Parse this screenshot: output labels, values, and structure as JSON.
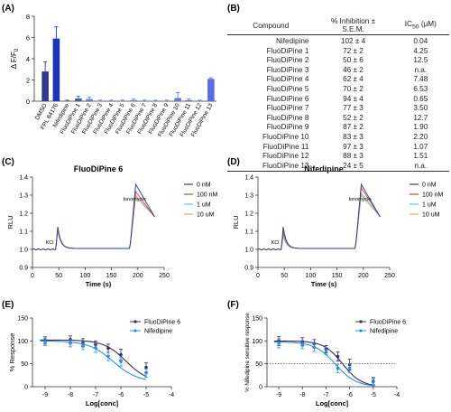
{
  "panel_labels": {
    "A": "(A)",
    "B": "(B)",
    "C": "(C)",
    "D": "(D)",
    "E": "(E)",
    "F": "(F)"
  },
  "table": {
    "headers": [
      "Compound",
      "% Inhibition ±",
      "S.E.M.",
      "IC",
      "50",
      " (μM)"
    ],
    "rows": [
      [
        "Nifedipine",
        "102 ± 4",
        "0.04"
      ],
      [
        "FluoDiPine 1",
        "72 ± 2",
        "4.25"
      ],
      [
        "FluoDiPine 2",
        "50 ± 6",
        "12.5"
      ],
      [
        "FluoDiPine 3",
        "46 ± 2",
        "n.a."
      ],
      [
        "FluoDiPine 4",
        "62 ± 4",
        "7.48"
      ],
      [
        "FluoDiPine 5",
        "70 ± 2",
        "6.53"
      ],
      [
        "FluoDiPine 6",
        "94 ± 4",
        "0.65"
      ],
      [
        "FluoDiPine 7",
        "77 ± 3",
        "3.50"
      ],
      [
        "FluoDiPine 8",
        "52 ± 2",
        "12.7"
      ],
      [
        "FluoDiPine 9",
        "87 ± 2",
        "1.90"
      ],
      [
        "FluoDiPine 10",
        "83 ± 3",
        "2.20"
      ],
      [
        "FluoDiPine 11",
        "97 ± 3",
        "1.07"
      ],
      [
        "FluoDiPine 12",
        "88 ± 3",
        "1.51"
      ],
      [
        "FluoDiPine 13",
        "24 ± 5",
        "n.a."
      ]
    ]
  },
  "chart_data": [
    {
      "id": "A",
      "type": "bar",
      "ylabel": "Δ F/F",
      "ylabel_sub": "0",
      "ylim": [
        0,
        8
      ],
      "yticks": [
        0,
        2,
        4,
        6,
        8
      ],
      "categories": [
        "DMSO",
        "FPL 64176",
        "Nifedipine",
        "FluoDiPine 1",
        "FluoDiPine 2",
        "FluoDiPine 3",
        "FluoDiPine 4",
        "FluoDiPine 5",
        "FluoDiPine 6",
        "FluoDiPine 7",
        "FluoDiPine 8",
        "FluoDiPine 9",
        "FluoDiPine 10",
        "FluoDiPine 11",
        "FluoDiPine 12",
        "FluoDiPine 13"
      ],
      "values": [
        2.8,
        5.9,
        0.05,
        0.25,
        0.2,
        0.05,
        0.05,
        0.05,
        0.1,
        0.05,
        0.05,
        0.05,
        0.3,
        0.1,
        0.05,
        2.1
      ],
      "errors": [
        0.9,
        1.1,
        0.05,
        0.2,
        0.2,
        0.05,
        0.05,
        0.05,
        0.1,
        0.05,
        0.05,
        0.05,
        0.5,
        0.1,
        0.05,
        0.1
      ],
      "colors": [
        "#2e3a87",
        "#1a35b8",
        "#4a5a9a",
        "#4a5a9a",
        "#6a7cc8",
        "#6a7cc8",
        "#6a7cc8",
        "#6a7cc8",
        "#6a7cc8",
        "#6a7cc8",
        "#6a7cc8",
        "#6a7cc8",
        "#6a7cc8",
        "#6a7cc8",
        "#6a7cc8",
        "#5b6ce0"
      ]
    },
    {
      "id": "C",
      "type": "line",
      "title": "FluoDiPine 6",
      "xlabel": "Time (s)",
      "ylabel": "RLU",
      "xlim": [
        0,
        250
      ],
      "ylim": [
        0.9,
        1.4
      ],
      "xticks": [
        0,
        50,
        100,
        150,
        200,
        250
      ],
      "yticks": [
        0.9,
        1.0,
        1.1,
        1.2,
        1.3,
        1.4
      ],
      "annotations": [
        {
          "text": "KCl",
          "x": 25,
          "y": 1.03
        },
        {
          "text": "Ionomycin",
          "x": 172,
          "y": 1.27
        }
      ],
      "legend_position": "right",
      "series": [
        {
          "name": "0 nM",
          "color": "#2f3b8f",
          "peak1": 1.12,
          "peak2": 1.36
        },
        {
          "name": "100 nM",
          "color": "#d9442f",
          "peak1": 1.11,
          "peak2": 1.32
        },
        {
          "name": "1 uM",
          "color": "#5ec8e8",
          "peak1": 1.1,
          "peak2": 1.3
        },
        {
          "name": "10 uM",
          "color": "#e8a86a",
          "peak1": 1.1,
          "peak2": 1.29
        }
      ]
    },
    {
      "id": "D",
      "type": "line",
      "title": "Nifedipine",
      "xlabel": "Time (s)",
      "ylabel": "RLU",
      "xlim": [
        0,
        250
      ],
      "ylim": [
        0.9,
        1.4
      ],
      "xticks": [
        0,
        50,
        100,
        150,
        200,
        250
      ],
      "yticks": [
        0.9,
        1.0,
        1.1,
        1.2,
        1.3,
        1.4
      ],
      "annotations": [
        {
          "text": "KCl",
          "x": 25,
          "y": 1.03
        },
        {
          "text": "Ionomycin",
          "x": 172,
          "y": 1.27
        }
      ],
      "legend_position": "right",
      "series": [
        {
          "name": "0 nM",
          "color": "#2f3b8f",
          "peak1": 1.12,
          "peak2": 1.36
        },
        {
          "name": "100 nM",
          "color": "#d9442f",
          "peak1": 1.1,
          "peak2": 1.34
        },
        {
          "name": "1 uM",
          "color": "#5ec8e8",
          "peak1": 1.08,
          "peak2": 1.31
        },
        {
          "name": "10 uM",
          "color": "#e8a86a",
          "peak1": 1.07,
          "peak2": 1.3
        }
      ]
    },
    {
      "id": "E",
      "type": "scatter",
      "xlabel": "Log[conc]",
      "ylabel": "% Response",
      "xlim": [
        -9.5,
        -4
      ],
      "ylim": [
        0,
        150
      ],
      "xticks": [
        -9,
        -8,
        -7,
        -6,
        -5,
        -4
      ],
      "yticks": [
        0,
        50,
        100,
        150
      ],
      "legend_position": "top-right",
      "series": [
        {
          "name": "FluoDiPine 6",
          "color": "#3a2a5a",
          "x": [
            -9,
            -8,
            -7.5,
            -7,
            -6.5,
            -6,
            -5
          ],
          "y": [
            101,
            103,
            96,
            92,
            84,
            70,
            42
          ],
          "err": [
            8,
            8,
            9,
            8,
            9,
            12,
            10
          ],
          "ic50": -5.8,
          "hill": 1.0,
          "top": 102,
          "bottom": 10
        },
        {
          "name": "Nifedipine",
          "color": "#2f8fe0",
          "x": [
            -9,
            -8,
            -7.5,
            -7,
            -6.5,
            -6,
            -5
          ],
          "y": [
            98,
            95,
            90,
            85,
            66,
            55,
            30
          ],
          "err": [
            8,
            8,
            9,
            10,
            9,
            10,
            9
          ],
          "ic50": -6.3,
          "hill": 0.9,
          "top": 100,
          "bottom": 10
        }
      ]
    },
    {
      "id": "F",
      "type": "scatter",
      "xlabel": "Log[conc]",
      "ylabel": "% Nifedipine sensitive response",
      "xlim": [
        -9.5,
        -4
      ],
      "ylim": [
        0,
        150
      ],
      "xticks": [
        -9,
        -8,
        -7,
        -6,
        -5,
        -4
      ],
      "yticks": [
        0,
        50,
        100,
        150
      ],
      "reference_line": 50,
      "legend_position": "top-right",
      "series": [
        {
          "name": "FluoDiPine 6",
          "color": "#3a2a5a",
          "x": [
            -9,
            -8,
            -7.5,
            -7,
            -6.5,
            -6,
            -5
          ],
          "y": [
            100,
            98,
            94,
            82,
            66,
            48,
            12
          ],
          "err": [
            10,
            9,
            9,
            8,
            10,
            12,
            8
          ],
          "ic50": -6.3,
          "hill": 1.1,
          "top": 100,
          "bottom": 0
        },
        {
          "name": "Nifedipine",
          "color": "#2f8fe0",
          "x": [
            -9,
            -8,
            -7.5,
            -7,
            -6.5,
            -6,
            -5
          ],
          "y": [
            95,
            92,
            86,
            78,
            40,
            40,
            10
          ],
          "err": [
            10,
            9,
            9,
            8,
            9,
            10,
            8
          ],
          "ic50": -6.6,
          "hill": 1.0,
          "top": 98,
          "bottom": 0
        }
      ]
    }
  ]
}
